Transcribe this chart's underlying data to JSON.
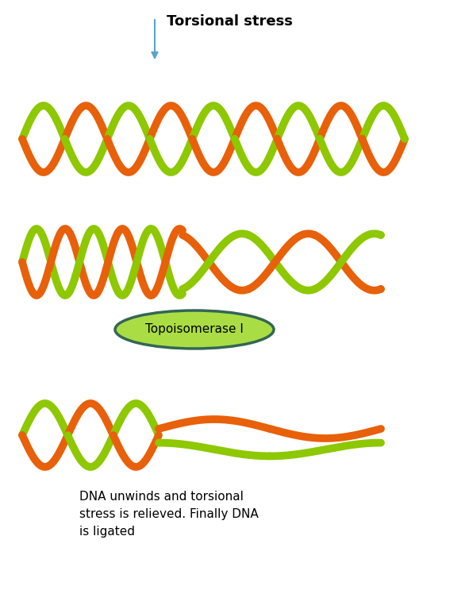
{
  "title": "Torsional stress",
  "arrow_color": "#5ba3c9",
  "orange_color": "#e8600a",
  "green_color": "#8dc800",
  "topo_label": "Topoisomerase I",
  "topo_bg": "#aadd44",
  "topo_border": "#336655",
  "bottom_text": "DNA unwinds and torsional\nstress is relieved. Finally DNA\nis ligated",
  "lw": 7.0,
  "background": "#ffffff",
  "fig_w": 5.91,
  "fig_h": 7.43,
  "dpi": 100
}
